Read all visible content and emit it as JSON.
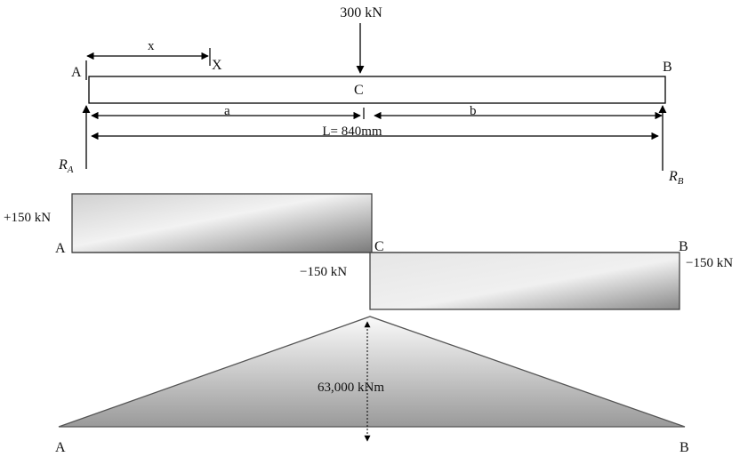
{
  "load": {
    "value": "300 kN"
  },
  "beam": {
    "left_end": "A",
    "right_end": "B",
    "load_point": "C",
    "section_dist": "x",
    "section": "X",
    "seg_a": "a",
    "seg_b": "b",
    "length": "L= 840mm",
    "reaction_left": "R",
    "reaction_left_sub": "A",
    "reaction_right": "R",
    "reaction_right_sub": "B"
  },
  "shear": {
    "left_end": "A",
    "mid": "C",
    "right_end": "B",
    "positive": "+150 kN",
    "negative_mid": "−150 kN",
    "negative_right": "−150 kN"
  },
  "moment": {
    "left_end": "A",
    "right_end": "B",
    "max_value": "63,000 kNm"
  }
}
